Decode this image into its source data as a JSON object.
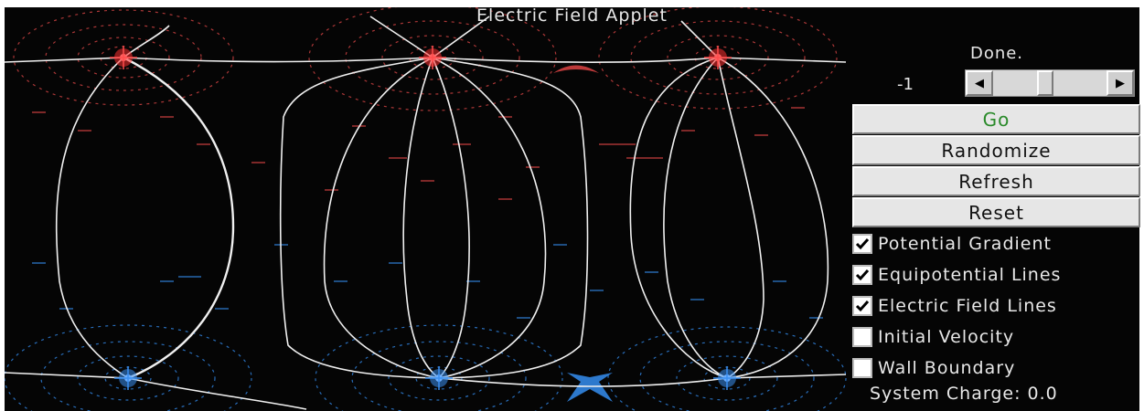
{
  "applet": {
    "title": "Electric Field Applet"
  },
  "controls": {
    "status": "Done.",
    "slider_value": "-1",
    "slider_position": 0.45,
    "buttons": {
      "go": "Go",
      "randomize": "Randomize",
      "refresh": "Refresh",
      "reset": "Reset"
    },
    "checkboxes": [
      {
        "label": "Potential Gradient",
        "checked": true
      },
      {
        "label": "Equipotential Lines",
        "checked": true
      },
      {
        "label": "Electric Field Lines",
        "checked": true
      },
      {
        "label": "Initial Velocity",
        "checked": false
      },
      {
        "label": "Wall Boundary",
        "checked": false
      }
    ],
    "system_charge": "System Charge: 0.0"
  },
  "charges": [
    {
      "sign": "positive",
      "color": "#ff4d4d"
    },
    {
      "sign": "positive",
      "color": "#ff4d4d"
    },
    {
      "sign": "positive",
      "color": "#ff4d4d"
    },
    {
      "sign": "negative",
      "color": "#3a8ff0"
    },
    {
      "sign": "negative",
      "color": "#3a8ff0"
    },
    {
      "sign": "negative",
      "color": "#3a8ff0"
    }
  ],
  "colors": {
    "background": "#050505",
    "positive": "#ff4d4d",
    "negative": "#3a8ff0",
    "field_lines": "#f0f0f0",
    "go_text": "#2a8a2a"
  },
  "icons": {
    "scroll_left": "arrow-left-icon",
    "scroll_right": "arrow-right-icon",
    "check": "checkmark-icon"
  }
}
